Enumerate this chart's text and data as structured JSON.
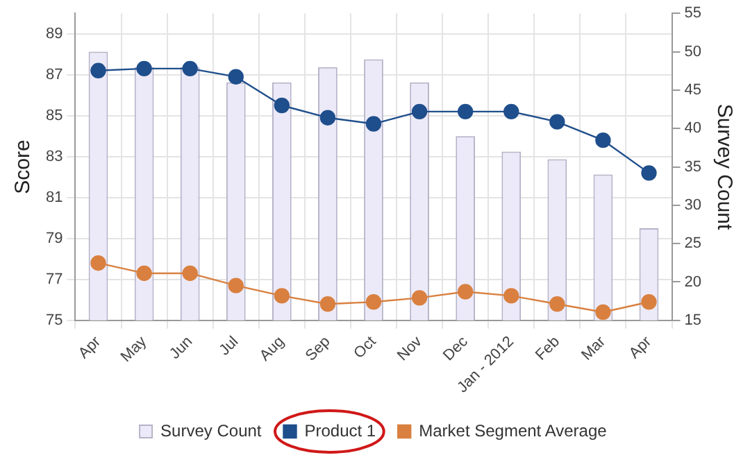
{
  "chart_data": {
    "type": "bar",
    "ylabel": "Score",
    "y2label": "Survey Count",
    "categories": [
      "Apr",
      "May",
      "Jun",
      "Jul",
      "Aug",
      "Sep",
      "Oct",
      "Nov",
      "Dec",
      "Jan - 2012",
      "Feb",
      "Mar",
      "Apr"
    ],
    "series": [
      {
        "name": "Survey Count",
        "axis": "y2",
        "color": "#eceaf8",
        "values": [
          50,
          48,
          48,
          46,
          46,
          48,
          49,
          46,
          39,
          37,
          36,
          34,
          27
        ]
      },
      {
        "name": "Product 1",
        "type": "line",
        "color": "#1f4e8c",
        "values": [
          87.2,
          87.3,
          87.3,
          86.9,
          85.5,
          84.9,
          84.6,
          85.2,
          85.2,
          85.2,
          84.7,
          83.8,
          82.2
        ]
      },
      {
        "name": "Market Segment Average",
        "type": "line",
        "color": "#d98040",
        "values": [
          77.8,
          77.3,
          77.3,
          76.7,
          76.2,
          75.8,
          75.9,
          76.1,
          76.4,
          76.2,
          75.8,
          75.4,
          75.9
        ]
      }
    ],
    "ylim": [
      75,
      90
    ],
    "yticks": [
      75,
      77,
      79,
      81,
      83,
      85,
      87,
      89
    ],
    "y2lim": [
      15,
      55
    ],
    "y2ticks": [
      15,
      20,
      25,
      30,
      35,
      40,
      45,
      50,
      55
    ],
    "grid": true,
    "legend": "bottom",
    "marker": "circle"
  }
}
